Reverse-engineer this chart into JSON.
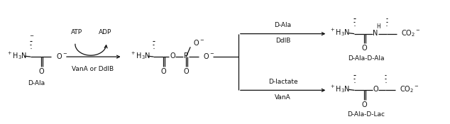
{
  "background_color": "#ffffff",
  "fig_width": 6.34,
  "fig_height": 1.75,
  "dpi": 100,
  "d_ala_label": "D-Ala",
  "d_ala_d_ala_label": "D-Ala-D-Ala",
  "d_ala_d_lac_label": "D-Ala-D-Lac",
  "atp_label": "ATP",
  "adp_label": "ADP",
  "vana_ddlb_label": "VanA or DdlB",
  "ddlb_label": "DdlB",
  "vana_label": "VanA",
  "d_ala_arrow_label": "D-Ala",
  "d_lactate_label": "D-lactate",
  "text_color": "#111111",
  "line_color": "#111111",
  "font_size_label": 6.5,
  "font_size_chem": 7.0,
  "font_size_tiny": 5.5
}
